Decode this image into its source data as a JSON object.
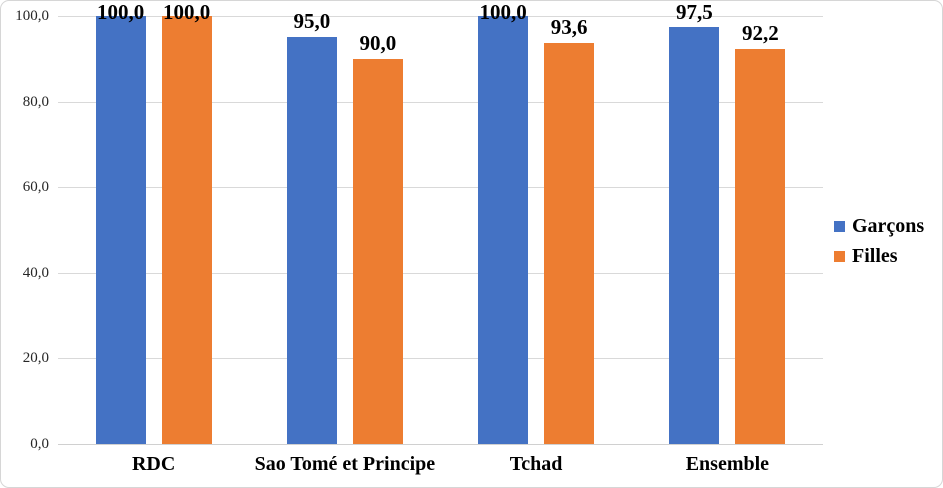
{
  "chart_data": {
    "type": "bar",
    "title": "",
    "xlabel": "",
    "ylabel": "",
    "categories": [
      "RDC",
      "Sao Tomé et Principe",
      "Tchad",
      "Ensemble"
    ],
    "series": [
      {
        "name": "Garçons",
        "color": "#4472C4",
        "values": [
          100.0,
          95.0,
          100.0,
          97.5
        ],
        "labels": [
          "100,0",
          "95,0",
          "100,0",
          "97,5"
        ]
      },
      {
        "name": "Filles",
        "color": "#ED7D31",
        "values": [
          100.0,
          90.0,
          93.6,
          92.2
        ],
        "labels": [
          "100,0",
          "90,0",
          "93,6",
          "92,2"
        ]
      }
    ],
    "y_axis": {
      "min": 0,
      "max": 100,
      "step": 20,
      "tick_labels": [
        "0,0",
        "20,0",
        "40,0",
        "60,0",
        "80,0",
        "100,0"
      ]
    },
    "ylim": [
      0,
      100
    ],
    "grid": true,
    "legend_position": "right",
    "colors": {
      "gridline": "#D9D9D9",
      "axis_line": "#D0D0D0",
      "tick_text": "#262626",
      "label_text": "#000000"
    }
  }
}
